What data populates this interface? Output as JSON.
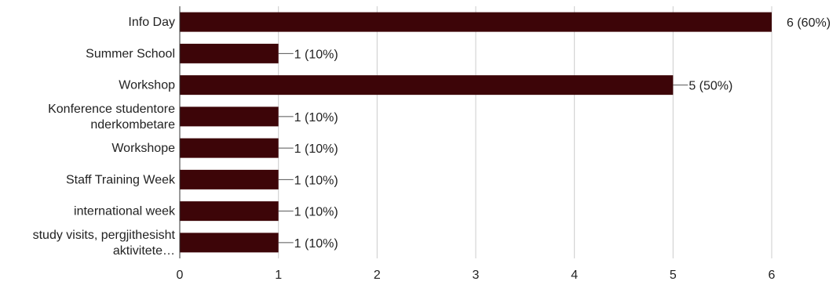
{
  "chart_data": {
    "type": "bar",
    "orientation": "horizontal",
    "categories": [
      [
        "Info Day"
      ],
      [
        "Summer School"
      ],
      [
        "Workshop"
      ],
      [
        "Konference studentore",
        "nderkombetare"
      ],
      [
        "Workshope"
      ],
      [
        "Staff Training Week"
      ],
      [
        "international week"
      ],
      [
        "study visits, pergjithesisht",
        "aktivitete…"
      ]
    ],
    "values": [
      6,
      1,
      5,
      1,
      1,
      1,
      1,
      1
    ],
    "data_labels": [
      "6 (60%)",
      "1 (10%)",
      "5 (50%)",
      "1 (10%)",
      "1 (10%)",
      "1 (10%)",
      "1 (10%)",
      "1 (10%)"
    ],
    "x_ticks": [
      "0",
      "1",
      "2",
      "3",
      "4",
      "5",
      "6"
    ],
    "xlim": [
      0,
      6
    ],
    "grid": true,
    "bar_color": "#3d0508",
    "title": "",
    "xlabel": "",
    "ylabel": ""
  }
}
